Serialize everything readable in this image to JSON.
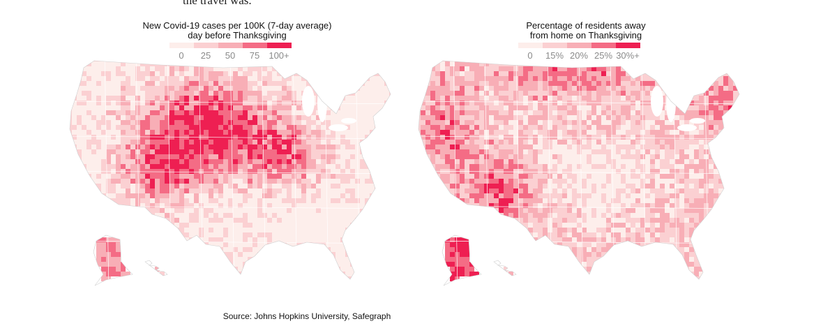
{
  "header_fragment": "the travel was.",
  "colors": {
    "bin0": "#fdeeeb",
    "bin1": "#fbd0d2",
    "bin2": "#f8aeb6",
    "bin3": "#f46c85",
    "bin4": "#ee1f52",
    "state_border": "#ffffff",
    "outline": "#cfcfcf"
  },
  "left_map": {
    "title_line1": "New Covid-19 cases per 100K (7-day average)",
    "title_line2": "day before Thanksgiving",
    "legend_ticks": [
      "0",
      "25",
      "50",
      "75",
      "100+"
    ],
    "legend_values": [
      0,
      25,
      50,
      75,
      100
    ]
  },
  "right_map": {
    "title_line1": "Percentage of residents away",
    "title_line2": "from home on Thanksgiving",
    "legend_ticks": [
      "0",
      "15%",
      "20%",
      "25%",
      "30%+"
    ],
    "legend_values": [
      0,
      15,
      20,
      25,
      30
    ]
  },
  "source": "Source: Johns Hopkins University, Safegraph"
}
